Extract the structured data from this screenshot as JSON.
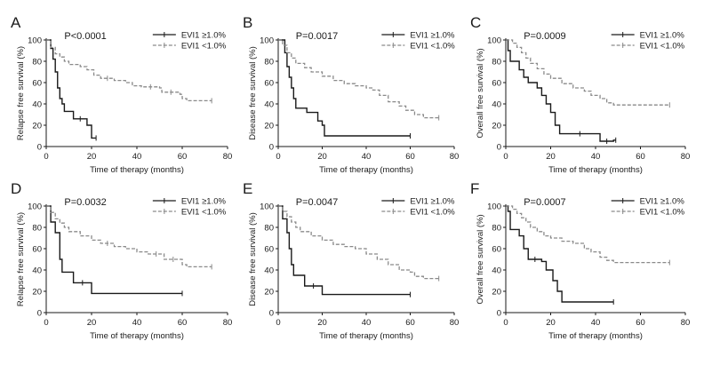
{
  "chart_data": [
    {
      "type": "line",
      "panel": "A",
      "p_value": "P<0.0001",
      "xlabel": "Time of therapy (months)",
      "ylabel": "Relapse free survival (%)",
      "xlim": [
        0,
        80
      ],
      "ylim": [
        0,
        100
      ],
      "xticks": [
        "0",
        "20",
        "40",
        "60",
        "80"
      ],
      "yticks": [
        "0",
        "20",
        "40",
        "60",
        "80",
        "100"
      ],
      "series": [
        {
          "name": "EVI1 ≥1.0%",
          "style": "solid",
          "color": "#1a1a1a",
          "steps": [
            [
              0,
              100
            ],
            [
              2,
              92
            ],
            [
              3,
              82
            ],
            [
              4,
              70
            ],
            [
              5,
              55
            ],
            [
              6,
              45
            ],
            [
              7,
              40
            ],
            [
              8,
              33
            ],
            [
              12,
              26
            ],
            [
              18,
              20
            ],
            [
              20,
              8
            ],
            [
              22,
              8
            ]
          ],
          "end": 22
        },
        {
          "name": "EVI1 <1.0%",
          "style": "dashed",
          "color": "#8a8a8a",
          "steps": [
            [
              0,
              100
            ],
            [
              2,
              93
            ],
            [
              4,
              87
            ],
            [
              6,
              84
            ],
            [
              8,
              80
            ],
            [
              10,
              77
            ],
            [
              15,
              75
            ],
            [
              18,
              72
            ],
            [
              21,
              67
            ],
            [
              24,
              64
            ],
            [
              30,
              62
            ],
            [
              35,
              60
            ],
            [
              38,
              57
            ],
            [
              42,
              56
            ],
            [
              50,
              55
            ],
            [
              51,
              51
            ],
            [
              59,
              49
            ],
            [
              60,
              45
            ],
            [
              62,
              43
            ]
          ],
          "end": 73
        }
      ]
    },
    {
      "type": "line",
      "panel": "B",
      "p_value": "P=0.0017",
      "xlabel": "Time of therapy (months)",
      "ylabel": "Disease free survival (%)",
      "xlim": [
        0,
        80
      ],
      "ylim": [
        0,
        100
      ],
      "xticks": [
        "0",
        "20",
        "40",
        "60",
        "80"
      ],
      "yticks": [
        "0",
        "20",
        "40",
        "60",
        "80",
        "100"
      ],
      "series": [
        {
          "name": "EVI1 ≥1.0%",
          "style": "solid",
          "color": "#1a1a1a",
          "steps": [
            [
              0,
              100
            ],
            [
              3,
              88
            ],
            [
              4,
              75
            ],
            [
              5,
              65
            ],
            [
              6,
              55
            ],
            [
              7,
              45
            ],
            [
              8,
              36
            ],
            [
              13,
              32
            ],
            [
              18,
              24
            ],
            [
              20,
              20
            ],
            [
              21,
              10
            ]
          ],
          "end": 60
        },
        {
          "name": "EVI1 <1.0%",
          "style": "dashed",
          "color": "#8a8a8a",
          "steps": [
            [
              0,
              100
            ],
            [
              2,
              95
            ],
            [
              4,
              88
            ],
            [
              6,
              83
            ],
            [
              8,
              78
            ],
            [
              12,
              74
            ],
            [
              15,
              70
            ],
            [
              20,
              66
            ],
            [
              25,
              62
            ],
            [
              30,
              59
            ],
            [
              35,
              57
            ],
            [
              40,
              55
            ],
            [
              43,
              53
            ],
            [
              46,
              48
            ],
            [
              50,
              42
            ],
            [
              55,
              38
            ],
            [
              58,
              34
            ],
            [
              62,
              30
            ],
            [
              66,
              27
            ]
          ],
          "end": 73
        }
      ]
    },
    {
      "type": "line",
      "panel": "C",
      "p_value": "P=0.0009",
      "xlabel": "Time of therapy (months)",
      "ylabel": "Overall free survival (%)",
      "xlim": [
        0,
        80
      ],
      "ylim": [
        0,
        100
      ],
      "xticks": [
        "0",
        "20",
        "40",
        "60",
        "80"
      ],
      "yticks": [
        "0",
        "20",
        "40",
        "60",
        "80",
        "100"
      ],
      "series": [
        {
          "name": "EVI1 ≥1.0%",
          "style": "solid",
          "color": "#1a1a1a",
          "steps": [
            [
              0,
              100
            ],
            [
              1,
              90
            ],
            [
              2,
              80
            ],
            [
              6,
              72
            ],
            [
              8,
              65
            ],
            [
              10,
              60
            ],
            [
              14,
              55
            ],
            [
              16,
              48
            ],
            [
              18,
              40
            ],
            [
              20,
              32
            ],
            [
              22,
              20
            ],
            [
              24,
              12
            ],
            [
              42,
              5
            ],
            [
              48,
              6
            ]
          ],
          "end": 49
        },
        {
          "name": "EVI1 <1.0%",
          "style": "dashed",
          "color": "#8a8a8a",
          "steps": [
            [
              0,
              100
            ],
            [
              3,
              97
            ],
            [
              5,
              93
            ],
            [
              7,
              88
            ],
            [
              9,
              83
            ],
            [
              11,
              78
            ],
            [
              14,
              73
            ],
            [
              17,
              68
            ],
            [
              20,
              64
            ],
            [
              25,
              59
            ],
            [
              30,
              55
            ],
            [
              35,
              52
            ],
            [
              38,
              48
            ],
            [
              42,
              45
            ],
            [
              45,
              41
            ],
            [
              48,
              39
            ]
          ],
          "end": 73
        }
      ]
    },
    {
      "type": "line",
      "panel": "D",
      "p_value": "P=0.0032",
      "xlabel": "Time of therapy (months)",
      "ylabel": "Relapse free survival (%)",
      "xlim": [
        0,
        80
      ],
      "ylim": [
        0,
        100
      ],
      "xticks": [
        "0",
        "20",
        "40",
        "60",
        "80"
      ],
      "yticks": [
        "0",
        "20",
        "40",
        "60",
        "80",
        "100"
      ],
      "series": [
        {
          "name": "EVI1 ≥1.0%",
          "style": "solid",
          "color": "#1a1a1a",
          "steps": [
            [
              0,
              100
            ],
            [
              2,
              85
            ],
            [
              4,
              75
            ],
            [
              6,
              50
            ],
            [
              7,
              38
            ],
            [
              12,
              28
            ],
            [
              20,
              18
            ]
          ],
          "end": 60
        },
        {
          "name": "EVI1 <1.0%",
          "style": "dashed",
          "color": "#8a8a8a",
          "steps": [
            [
              0,
              100
            ],
            [
              2,
              94
            ],
            [
              4,
              88
            ],
            [
              6,
              84
            ],
            [
              8,
              80
            ],
            [
              10,
              76
            ],
            [
              15,
              72
            ],
            [
              20,
              68
            ],
            [
              24,
              65
            ],
            [
              30,
              62
            ],
            [
              35,
              60
            ],
            [
              40,
              57
            ],
            [
              45,
              55
            ],
            [
              52,
              50
            ],
            [
              60,
              45
            ],
            [
              62,
              43
            ]
          ],
          "end": 73
        }
      ]
    },
    {
      "type": "line",
      "panel": "E",
      "p_value": "P=0.0047",
      "xlabel": "Time of therapy (months)",
      "ylabel": "Disease free survival (%)",
      "xlim": [
        0,
        80
      ],
      "ylim": [
        0,
        100
      ],
      "xticks": [
        "0",
        "20",
        "40",
        "60",
        "80"
      ],
      "yticks": [
        "0",
        "20",
        "40",
        "60",
        "80",
        "100"
      ],
      "series": [
        {
          "name": "EVI1 ≥1.0%",
          "style": "solid",
          "color": "#1a1a1a",
          "steps": [
            [
              0,
              100
            ],
            [
              2,
              88
            ],
            [
              4,
              75
            ],
            [
              5,
              60
            ],
            [
              6,
              45
            ],
            [
              7,
              35
            ],
            [
              12,
              25
            ],
            [
              20,
              17
            ]
          ],
          "end": 60
        },
        {
          "name": "EVI1 <1.0%",
          "style": "dashed",
          "color": "#8a8a8a",
          "steps": [
            [
              0,
              100
            ],
            [
              2,
              95
            ],
            [
              4,
              90
            ],
            [
              6,
              85
            ],
            [
              8,
              80
            ],
            [
              10,
              76
            ],
            [
              15,
              72
            ],
            [
              20,
              68
            ],
            [
              25,
              64
            ],
            [
              30,
              62
            ],
            [
              35,
              60
            ],
            [
              40,
              55
            ],
            [
              45,
              50
            ],
            [
              50,
              45
            ],
            [
              55,
              40
            ],
            [
              60,
              38
            ],
            [
              62,
              34
            ],
            [
              66,
              32
            ]
          ],
          "end": 73
        }
      ]
    },
    {
      "type": "line",
      "panel": "F",
      "p_value": "P=0.0007",
      "xlabel": "Time of therapy (months)",
      "ylabel": "Overall free survival (%)",
      "xlim": [
        0,
        80
      ],
      "ylim": [
        0,
        100
      ],
      "xticks": [
        "0",
        "20",
        "40",
        "60",
        "80"
      ],
      "yticks": [
        "0",
        "20",
        "40",
        "60",
        "80",
        "100"
      ],
      "series": [
        {
          "name": "EVI1 ≥1.0%",
          "style": "solid",
          "color": "#1a1a1a",
          "steps": [
            [
              0,
              100
            ],
            [
              1,
              95
            ],
            [
              2,
              78
            ],
            [
              6,
              72
            ],
            [
              8,
              60
            ],
            [
              10,
              50
            ],
            [
              16,
              48
            ],
            [
              18,
              40
            ],
            [
              21,
              30
            ],
            [
              23,
              20
            ],
            [
              25,
              10
            ]
          ],
          "end": 48
        },
        {
          "name": "EVI1 <1.0%",
          "style": "dashed",
          "color": "#8a8a8a",
          "steps": [
            [
              0,
              100
            ],
            [
              3,
              97
            ],
            [
              5,
              93
            ],
            [
              7,
              89
            ],
            [
              9,
              85
            ],
            [
              11,
              80
            ],
            [
              14,
              76
            ],
            [
              17,
              72
            ],
            [
              20,
              70
            ],
            [
              25,
              67
            ],
            [
              30,
              65
            ],
            [
              35,
              60
            ],
            [
              38,
              57
            ],
            [
              42,
              52
            ],
            [
              45,
              49
            ],
            [
              48,
              47
            ]
          ],
          "end": 73
        }
      ]
    }
  ]
}
